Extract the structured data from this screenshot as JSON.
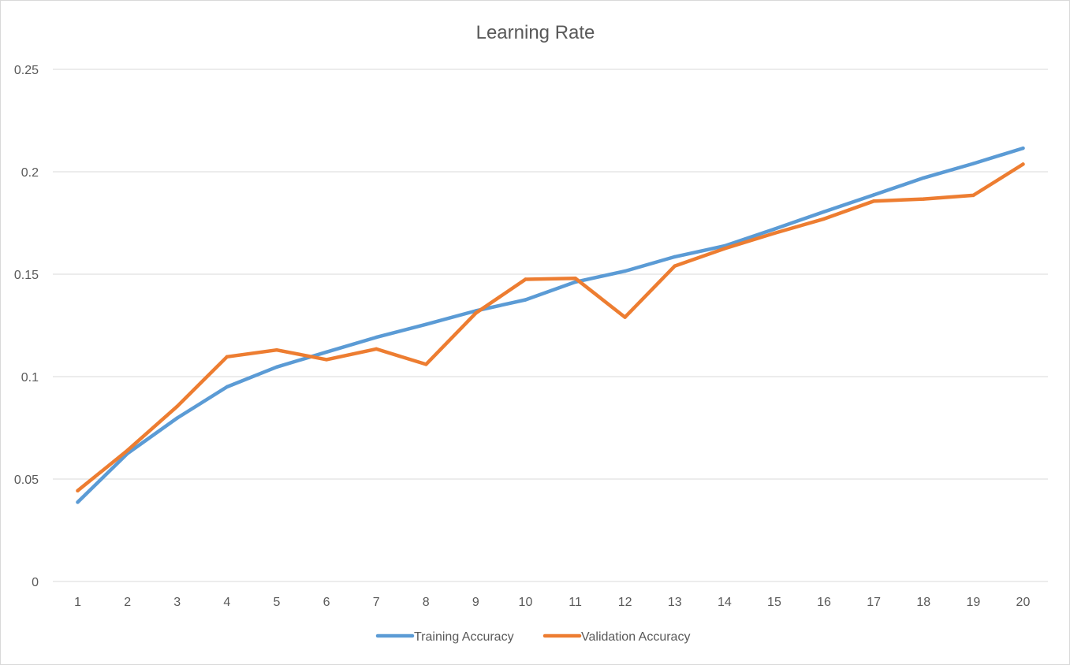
{
  "chart_data": {
    "type": "line",
    "title": "Learning Rate",
    "xlabel": "",
    "ylabel": "",
    "x": [
      1,
      2,
      3,
      4,
      5,
      6,
      7,
      8,
      9,
      10,
      11,
      12,
      13,
      14,
      15,
      16,
      17,
      18,
      19,
      20
    ],
    "x_tick_labels": [
      "1",
      "2",
      "3",
      "4",
      "5",
      "6",
      "7",
      "8",
      "9",
      "10",
      "11",
      "12",
      "13",
      "14",
      "15",
      "16",
      "17",
      "18",
      "19",
      "20"
    ],
    "ylim": [
      0,
      0.25
    ],
    "y_ticks": [
      0,
      0.05,
      0.1,
      0.15,
      0.2,
      0.25
    ],
    "y_tick_labels": [
      "0",
      "0.05",
      "0.1",
      "0.15",
      "0.2",
      "0.25"
    ],
    "grid": "horizontal",
    "legend_position": "bottom",
    "series": [
      {
        "name": "Training Accuracy",
        "color": "#5b9bd5",
        "values": [
          0.0387,
          0.0625,
          0.0798,
          0.095,
          0.1047,
          0.112,
          0.1192,
          0.1255,
          0.1321,
          0.1375,
          0.1462,
          0.1515,
          0.1585,
          0.1638,
          0.172,
          0.1805,
          0.1887,
          0.197,
          0.204,
          0.2115
        ]
      },
      {
        "name": "Validation Accuracy",
        "color": "#ed7d31",
        "values": [
          0.0443,
          0.064,
          0.0855,
          0.1097,
          0.113,
          0.1083,
          0.1135,
          0.106,
          0.131,
          0.1475,
          0.148,
          0.129,
          0.154,
          0.1625,
          0.17,
          0.177,
          0.1857,
          0.1867,
          0.1885,
          0.2037
        ]
      }
    ]
  }
}
